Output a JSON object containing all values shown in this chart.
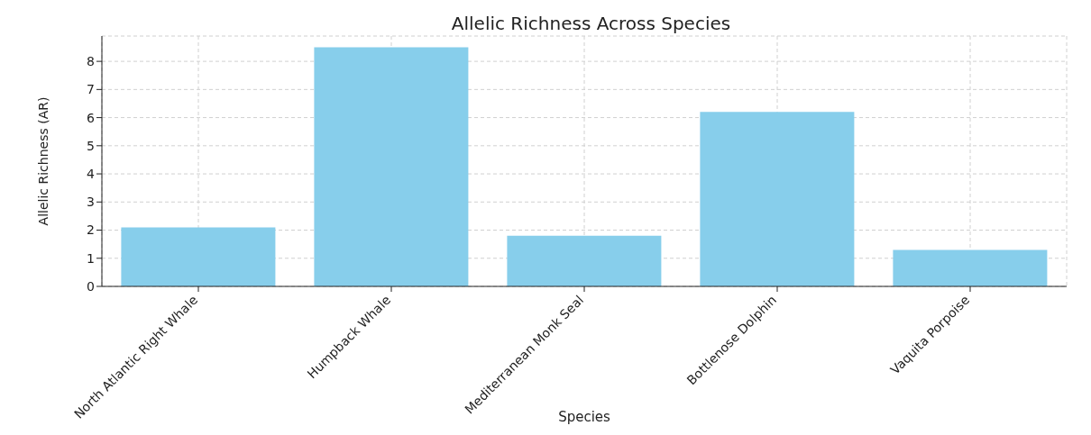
{
  "chart_data": {
    "type": "bar",
    "title": "Allelic Richness Across Species",
    "xlabel": "Species",
    "ylabel": "Allelic Richness (AR)",
    "categories": [
      "North Atlantic Right Whale",
      "Humpback Whale",
      "Mediterranean Monk Seal",
      "Bottlenose Dolphin",
      "Vaquita Porpoise"
    ],
    "values": [
      2.1,
      8.5,
      1.8,
      6.2,
      1.3
    ],
    "color": "#87ceeb",
    "ylim": [
      0,
      8.9
    ],
    "yticks": [
      0,
      1,
      2,
      3,
      4,
      5,
      6,
      7,
      8
    ],
    "grid": true
  }
}
